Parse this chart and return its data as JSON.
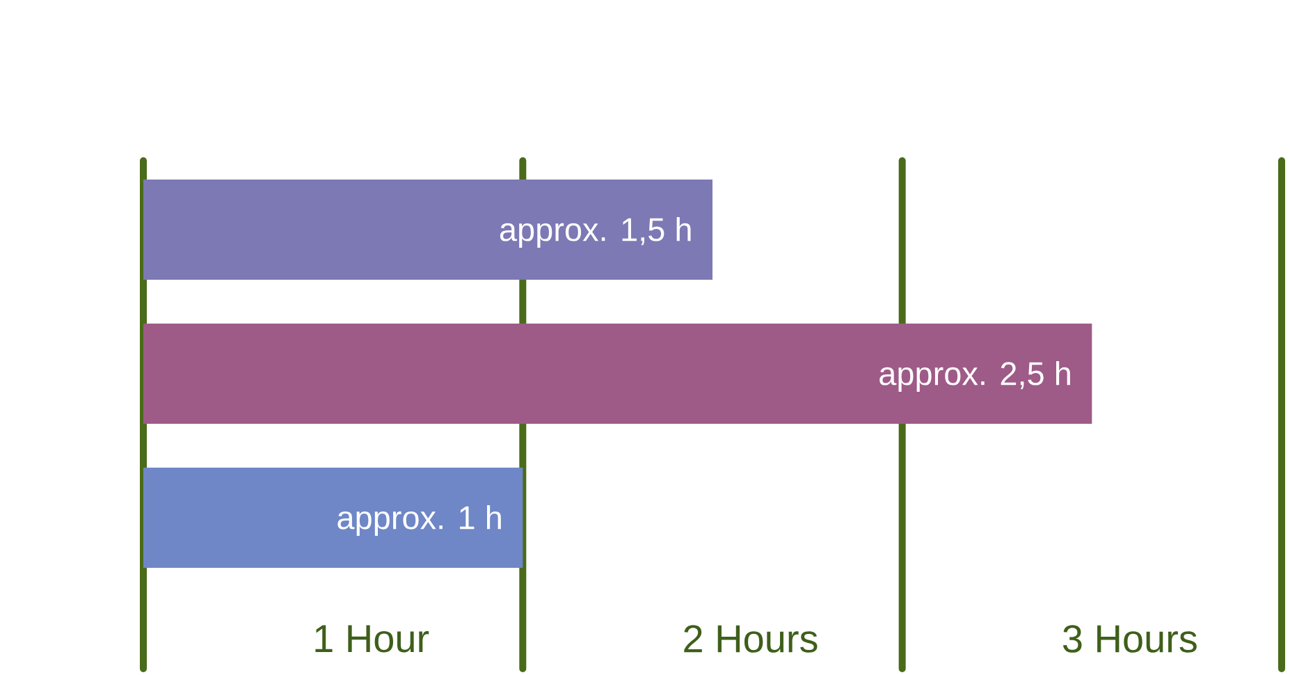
{
  "chart_data": {
    "type": "bar",
    "orientation": "horizontal",
    "categories": [
      null,
      null,
      null
    ],
    "values": [
      1.5,
      2.5,
      1
    ],
    "colors": [
      "#7d79b4",
      "#9e5b87",
      "#6f87c7"
    ],
    "value_labels": [
      "approx. 1,5 h",
      "approx. 2,5 h",
      "approx. 1 h"
    ],
    "xlim": [
      0,
      3
    ],
    "xticks": [
      {
        "value": 0.6,
        "label": "1 Hour"
      },
      {
        "value": 1.6,
        "label": "2 Hours"
      },
      {
        "value": 2.6,
        "label": "3 Hours"
      }
    ],
    "ref_lines": [
      {
        "axis": "x",
        "value": 0,
        "color": "#4a6b1a"
      },
      {
        "axis": "x",
        "value": 1,
        "color": "#4a6b1a"
      },
      {
        "axis": "x",
        "value": 2,
        "color": "#4a6b1a"
      },
      {
        "axis": "x",
        "value": 3,
        "color": "#4a6b1a"
      }
    ]
  }
}
